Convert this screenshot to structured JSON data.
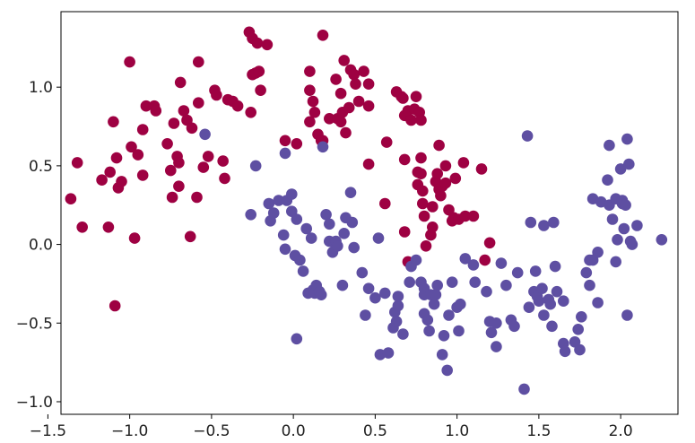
{
  "chart_data": {
    "type": "scatter",
    "title": "",
    "xlabel": "",
    "ylabel": "",
    "xlim": [
      -1.42,
      2.35
    ],
    "ylim": [
      -1.08,
      1.48
    ],
    "grid": false,
    "x_ticks": [
      -1.5,
      -1.0,
      -0.5,
      0.0,
      0.5,
      1.0,
      1.5,
      2.0
    ],
    "x_tick_labels": [
      "−1.5",
      "−1.0",
      "−0.5",
      "0.0",
      "0.5",
      "1.0",
      "1.5",
      "2.0"
    ],
    "y_ticks": [
      -1.0,
      -0.5,
      0.0,
      0.5,
      1.0
    ],
    "y_tick_labels": [
      "−1.0",
      "−0.5",
      "0.0",
      "0.5",
      "1.0"
    ],
    "series": [
      {
        "color": "#9e0142",
        "points": [
          [
            -1.36,
            0.29
          ],
          [
            -1.32,
            0.52
          ],
          [
            -1.29,
            0.11
          ],
          [
            -1.17,
            0.41
          ],
          [
            -1.13,
            0.11
          ],
          [
            -1.12,
            0.46
          ],
          [
            -1.1,
            0.78
          ],
          [
            -1.09,
            -0.39
          ],
          [
            -1.08,
            0.55
          ],
          [
            -1.07,
            0.36
          ],
          [
            -1.05,
            0.4
          ],
          [
            -1.0,
            1.16
          ],
          [
            -0.99,
            0.62
          ],
          [
            -0.97,
            0.04
          ],
          [
            -0.95,
            0.57
          ],
          [
            -0.92,
            0.44
          ],
          [
            -0.92,
            0.73
          ],
          [
            -0.9,
            0.88
          ],
          [
            -0.85,
            0.88
          ],
          [
            -0.84,
            0.85
          ],
          [
            -0.77,
            0.64
          ],
          [
            -0.75,
            0.47
          ],
          [
            -0.74,
            0.3
          ],
          [
            -0.73,
            0.77
          ],
          [
            -0.71,
            0.56
          ],
          [
            -0.7,
            0.37
          ],
          [
            -0.7,
            0.52
          ],
          [
            -0.69,
            1.03
          ],
          [
            -0.67,
            0.85
          ],
          [
            -0.65,
            0.79
          ],
          [
            -0.63,
            0.05
          ],
          [
            -0.62,
            0.74
          ],
          [
            -0.59,
            0.3
          ],
          [
            -0.58,
            1.16
          ],
          [
            -0.58,
            0.9
          ],
          [
            -0.55,
            0.49
          ],
          [
            -0.52,
            0.56
          ],
          [
            -0.48,
            0.98
          ],
          [
            -0.47,
            0.95
          ],
          [
            -0.43,
            0.53
          ],
          [
            -0.42,
            0.42
          ],
          [
            -0.4,
            0.92
          ],
          [
            -0.37,
            0.91
          ],
          [
            -0.34,
            0.88
          ],
          [
            -0.27,
            1.35
          ],
          [
            -0.26,
            0.84
          ],
          [
            -0.25,
            1.08
          ],
          [
            -0.25,
            1.31
          ],
          [
            -0.23,
            1.09
          ],
          [
            -0.22,
            1.28
          ],
          [
            -0.21,
            1.1
          ],
          [
            -0.2,
            0.98
          ],
          [
            -0.16,
            1.27
          ],
          [
            -0.05,
            0.66
          ],
          [
            0.02,
            0.64
          ],
          [
            0.1,
            1.1
          ],
          [
            0.1,
            0.98
          ],
          [
            0.1,
            0.78
          ],
          [
            0.12,
            0.91
          ],
          [
            0.13,
            0.84
          ],
          [
            0.15,
            0.7
          ],
          [
            0.17,
            0.66
          ],
          [
            0.18,
            0.66
          ],
          [
            0.18,
            1.33
          ],
          [
            0.22,
            0.8
          ],
          [
            0.26,
            1.05
          ],
          [
            0.27,
            0.8
          ],
          [
            0.29,
            0.78
          ],
          [
            0.29,
            0.96
          ],
          [
            0.3,
            0.84
          ],
          [
            0.31,
            1.17
          ],
          [
            0.32,
            0.71
          ],
          [
            0.34,
            0.87
          ],
          [
            0.35,
            1.11
          ],
          [
            0.37,
            1.08
          ],
          [
            0.38,
            1.02
          ],
          [
            0.4,
            0.91
          ],
          [
            0.43,
            1.1
          ],
          [
            0.46,
            1.02
          ],
          [
            0.46,
            0.51
          ],
          [
            0.46,
            0.88
          ],
          [
            0.56,
            0.26
          ],
          [
            0.57,
            0.65
          ],
          [
            0.63,
            0.97
          ],
          [
            0.66,
            0.94
          ],
          [
            0.67,
            0.93
          ],
          [
            0.68,
            0.82
          ],
          [
            0.68,
            0.08
          ],
          [
            0.68,
            0.54
          ],
          [
            0.7,
            -0.11
          ],
          [
            0.7,
            0.85
          ],
          [
            0.72,
            0.79
          ],
          [
            0.74,
            0.86
          ],
          [
            0.75,
            0.94
          ],
          [
            0.76,
            0.38
          ],
          [
            0.76,
            0.46
          ],
          [
            0.77,
            0.84
          ],
          [
            0.78,
            0.79
          ],
          [
            0.78,
            0.55
          ],
          [
            0.78,
            0.45
          ],
          [
            0.79,
            0.26
          ],
          [
            0.79,
            0.34
          ],
          [
            0.8,
            0.18
          ],
          [
            0.81,
            -0.01
          ],
          [
            0.84,
            0.06
          ],
          [
            0.85,
            0.24
          ],
          [
            0.85,
            0.11
          ],
          [
            0.87,
            0.4
          ],
          [
            0.88,
            0.45
          ],
          [
            0.89,
            0.35
          ],
          [
            0.89,
            0.63
          ],
          [
            0.9,
            0.31
          ],
          [
            0.91,
            0.37
          ],
          [
            0.93,
            0.5
          ],
          [
            0.93,
            0.39
          ],
          [
            0.95,
            0.22
          ],
          [
            0.97,
            0.15
          ],
          [
            0.98,
            0.17
          ],
          [
            0.99,
            0.42
          ],
          [
            1.01,
            0.16
          ],
          [
            1.04,
            0.52
          ],
          [
            1.05,
            0.18
          ],
          [
            1.1,
            0.18
          ],
          [
            1.15,
            0.48
          ],
          [
            1.17,
            -0.1
          ],
          [
            1.2,
            0.01
          ]
        ]
      },
      {
        "color": "#5e4fa2",
        "points": [
          [
            -0.54,
            0.7
          ],
          [
            -0.26,
            0.19
          ],
          [
            -0.23,
            0.5
          ],
          [
            -0.15,
            0.26
          ],
          [
            -0.14,
            0.15
          ],
          [
            -0.12,
            0.2
          ],
          [
            -0.09,
            0.28
          ],
          [
            -0.06,
            0.06
          ],
          [
            -0.05,
            0.58
          ],
          [
            -0.05,
            -0.03
          ],
          [
            -0.04,
            0.28
          ],
          [
            -0.01,
            0.32
          ],
          [
            -0.01,
            0.21
          ],
          [
            0.01,
            -0.07
          ],
          [
            0.02,
            0.16
          ],
          [
            0.02,
            -0.6
          ],
          [
            0.04,
            -0.1
          ],
          [
            0.06,
            -0.17
          ],
          [
            0.08,
            0.1
          ],
          [
            0.09,
            -0.31
          ],
          [
            0.11,
            0.04
          ],
          [
            0.12,
            -0.29
          ],
          [
            0.13,
            -0.31
          ],
          [
            0.14,
            -0.26
          ],
          [
            0.16,
            -0.3
          ],
          [
            0.17,
            -0.32
          ],
          [
            0.18,
            0.62
          ],
          [
            0.2,
            0.19
          ],
          [
            0.22,
            0.13
          ],
          [
            0.22,
            0.02
          ],
          [
            0.24,
            -0.05
          ],
          [
            0.25,
            0.01
          ],
          [
            0.26,
            0.02
          ],
          [
            0.27,
            -0.01
          ],
          [
            0.3,
            -0.26
          ],
          [
            0.31,
            0.07
          ],
          [
            0.32,
            0.17
          ],
          [
            0.35,
            0.33
          ],
          [
            0.36,
            0.14
          ],
          [
            0.37,
            -0.02
          ],
          [
            0.42,
            -0.18
          ],
          [
            0.44,
            -0.45
          ],
          [
            0.46,
            -0.28
          ],
          [
            0.5,
            -0.34
          ],
          [
            0.52,
            0.04
          ],
          [
            0.53,
            -0.7
          ],
          [
            0.56,
            -0.31
          ],
          [
            0.58,
            -0.69
          ],
          [
            0.61,
            -0.53
          ],
          [
            0.62,
            -0.43
          ],
          [
            0.63,
            -0.49
          ],
          [
            0.64,
            -0.39
          ],
          [
            0.64,
            -0.33
          ],
          [
            0.67,
            -0.57
          ],
          [
            0.71,
            -0.24
          ],
          [
            0.72,
            -0.14
          ],
          [
            0.75,
            -0.1
          ],
          [
            0.78,
            -0.24
          ],
          [
            0.8,
            -0.32
          ],
          [
            0.8,
            -0.44
          ],
          [
            0.8,
            -0.28
          ],
          [
            0.81,
            -0.31
          ],
          [
            0.82,
            -0.48
          ],
          [
            0.83,
            -0.55
          ],
          [
            0.84,
            -0.32
          ],
          [
            0.86,
            -0.38
          ],
          [
            0.87,
            -0.32
          ],
          [
            0.88,
            -0.26
          ],
          [
            0.91,
            -0.7
          ],
          [
            0.92,
            -0.58
          ],
          [
            0.94,
            -0.8
          ],
          [
            0.95,
            -0.45
          ],
          [
            0.97,
            -0.24
          ],
          [
            1.0,
            -0.4
          ],
          [
            1.01,
            -0.55
          ],
          [
            1.02,
            -0.38
          ],
          [
            1.05,
            -0.09
          ],
          [
            1.1,
            -0.13
          ],
          [
            1.11,
            -0.24
          ],
          [
            1.18,
            -0.3
          ],
          [
            1.2,
            -0.49
          ],
          [
            1.21,
            -0.56
          ],
          [
            1.24,
            -0.65
          ],
          [
            1.24,
            -0.5
          ],
          [
            1.27,
            -0.12
          ],
          [
            1.3,
            -0.26
          ],
          [
            1.33,
            -0.48
          ],
          [
            1.35,
            -0.52
          ],
          [
            1.37,
            -0.18
          ],
          [
            1.41,
            -0.92
          ],
          [
            1.43,
            0.69
          ],
          [
            1.44,
            -0.4
          ],
          [
            1.45,
            0.14
          ],
          [
            1.47,
            -0.3
          ],
          [
            1.48,
            -0.17
          ],
          [
            1.49,
            -0.33
          ],
          [
            1.5,
            -0.36
          ],
          [
            1.52,
            -0.28
          ],
          [
            1.53,
            -0.45
          ],
          [
            1.53,
            0.12
          ],
          [
            1.56,
            -0.35
          ],
          [
            1.57,
            -0.38
          ],
          [
            1.58,
            -0.52
          ],
          [
            1.59,
            0.14
          ],
          [
            1.6,
            -0.14
          ],
          [
            1.61,
            -0.3
          ],
          [
            1.65,
            -0.63
          ],
          [
            1.65,
            -0.36
          ],
          [
            1.66,
            -0.68
          ],
          [
            1.72,
            -0.62
          ],
          [
            1.74,
            -0.54
          ],
          [
            1.75,
            -0.67
          ],
          [
            1.76,
            -0.46
          ],
          [
            1.79,
            -0.18
          ],
          [
            1.81,
            -0.26
          ],
          [
            1.81,
            -0.1
          ],
          [
            1.83,
            -0.1
          ],
          [
            1.83,
            0.29
          ],
          [
            1.86,
            -0.05
          ],
          [
            1.86,
            -0.37
          ],
          [
            1.88,
            0.27
          ],
          [
            1.92,
            0.41
          ],
          [
            1.93,
            0.25
          ],
          [
            1.93,
            0.63
          ],
          [
            1.95,
            0.16
          ],
          [
            1.97,
            0.29
          ],
          [
            1.97,
            -0.11
          ],
          [
            1.98,
            0.03
          ],
          [
            2.0,
            0.48
          ],
          [
            2.01,
            0.28
          ],
          [
            2.01,
            0.26
          ],
          [
            2.02,
            0.1
          ],
          [
            2.03,
            0.25
          ],
          [
            2.04,
            0.67
          ],
          [
            2.04,
            -0.45
          ],
          [
            2.05,
            0.51
          ],
          [
            2.06,
            0.02
          ],
          [
            2.07,
            0.0
          ],
          [
            2.1,
            0.12
          ],
          [
            2.25,
            0.03
          ]
        ]
      }
    ]
  }
}
